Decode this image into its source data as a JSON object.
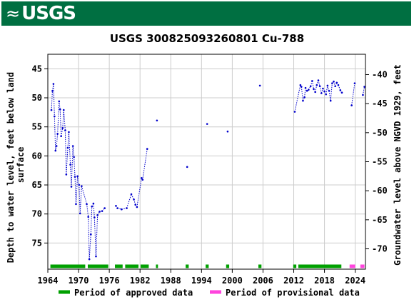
{
  "header": {
    "logo_text": "USGS",
    "logo_icon": "usgs-wave-icon",
    "bg_color": "#006f41"
  },
  "chart_data": {
    "type": "scatter",
    "title": "USGS 300825093260801 Cu-788",
    "ylabel_left": "Depth to water level, feet below land surface",
    "ylabel_right": "Groundwater level above NGVD 1929, feet",
    "xlim": [
      1964,
      2026
    ],
    "ylim_left": [
      79.5,
      42.5
    ],
    "ylim_right": [
      -36.5,
      -73.5
    ],
    "x_ticks": [
      "1964",
      "1970",
      "1976",
      "1982",
      "1988",
      "1994",
      "2000",
      "2006",
      "2012",
      "2018",
      "2024"
    ],
    "y_ticks_left": [
      "45",
      "50",
      "55",
      "60",
      "65",
      "70",
      "75"
    ],
    "y_ticks_right": [
      "-40",
      "-45",
      "-50",
      "-55",
      "-60",
      "-65",
      "-70"
    ],
    "grid": true,
    "series": [
      {
        "name": "Depth to water level",
        "color": "#0000cc",
        "points": [
          [
            1964.7,
            52.1
          ],
          [
            1964.9,
            48.8
          ],
          [
            1965.1,
            47.6
          ],
          [
            1965.3,
            53.2
          ],
          [
            1965.5,
            59.1
          ],
          [
            1965.7,
            58.3
          ],
          [
            1965.9,
            56.2
          ],
          [
            1966.2,
            50.6
          ],
          [
            1966.4,
            52.0
          ],
          [
            1966.6,
            56.6
          ],
          [
            1966.9,
            55.2
          ],
          [
            1967.1,
            52.1
          ],
          [
            1967.4,
            55.6
          ],
          [
            1967.6,
            63.2
          ],
          [
            1967.9,
            58.6
          ],
          [
            1968.1,
            55.9
          ],
          [
            1968.4,
            61.5
          ],
          [
            1968.6,
            65.3
          ],
          [
            1968.9,
            58.3
          ],
          [
            1969.1,
            60.2
          ],
          [
            1969.3,
            63.6
          ],
          [
            1969.5,
            68.3
          ],
          [
            1969.8,
            63.5
          ],
          [
            1970.1,
            65.0
          ],
          [
            1970.3,
            69.9
          ],
          [
            1970.6,
            65.2
          ],
          [
            1971.6,
            68.3
          ],
          [
            1971.9,
            70.5
          ],
          [
            1972.1,
            77.8
          ],
          [
            1972.4,
            73.5
          ],
          [
            1972.6,
            68.7
          ],
          [
            1972.9,
            68.2
          ],
          [
            1973.1,
            70.6
          ],
          [
            1973.4,
            77.3
          ],
          [
            1973.7,
            70.2
          ],
          [
            1974.1,
            69.6
          ],
          [
            1974.6,
            69.5
          ],
          [
            1975.1,
            69.0
          ],
          [
            1977.3,
            68.6
          ],
          [
            1977.6,
            69.0
          ],
          [
            1978.4,
            69.2
          ],
          [
            1979.4,
            69.0
          ],
          [
            1980.3,
            66.6
          ],
          [
            1980.8,
            67.5
          ],
          [
            1981.1,
            68.4
          ],
          [
            1981.4,
            68.8
          ],
          [
            1982.3,
            63.8
          ],
          [
            1982.5,
            64.1
          ],
          [
            1983.4,
            58.8
          ],
          [
            1985.3,
            53.9
          ],
          [
            1991.2,
            61.9
          ],
          [
            1995.1,
            54.5
          ],
          [
            1999.1,
            55.8
          ],
          [
            2005.4,
            47.9
          ],
          [
            2012.2,
            52.4
          ],
          [
            2013.3,
            47.8
          ],
          [
            2013.5,
            48.1
          ],
          [
            2013.8,
            50.5
          ],
          [
            2014.1,
            49.9
          ],
          [
            2014.3,
            48.3
          ],
          [
            2014.6,
            48.8
          ],
          [
            2014.9,
            48.6
          ],
          [
            2015.3,
            48.0
          ],
          [
            2015.6,
            47.1
          ],
          [
            2015.9,
            48.5
          ],
          [
            2016.2,
            49.0
          ],
          [
            2016.5,
            47.8
          ],
          [
            2016.8,
            47.0
          ],
          [
            2017.1,
            48.0
          ],
          [
            2017.4,
            49.2
          ],
          [
            2017.7,
            48.4
          ],
          [
            2018.0,
            48.9
          ],
          [
            2018.3,
            49.4
          ],
          [
            2018.6,
            47.9
          ],
          [
            2018.9,
            48.8
          ],
          [
            2019.2,
            50.5
          ],
          [
            2019.5,
            47.5
          ],
          [
            2019.8,
            47.2
          ],
          [
            2020.1,
            48.0
          ],
          [
            2020.4,
            47.4
          ],
          [
            2020.7,
            47.8
          ],
          [
            2021.1,
            48.7
          ],
          [
            2021.4,
            49.1
          ],
          [
            2023.3,
            51.3
          ],
          [
            2023.9,
            47.5
          ],
          [
            2025.5,
            49.5
          ],
          [
            2025.8,
            48.1
          ]
        ]
      }
    ],
    "approved_periods": [
      [
        1964.5,
        1971.3
      ],
      [
        1971.8,
        1975.8
      ],
      [
        1977.1,
        1978.6
      ],
      [
        1979.1,
        1981.7
      ],
      [
        1982.1,
        1983.7
      ],
      [
        1985.1,
        1985.5
      ],
      [
        1990.9,
        1991.5
      ],
      [
        1994.8,
        1995.4
      ],
      [
        1998.8,
        1999.4
      ],
      [
        2005.1,
        2005.7
      ],
      [
        2011.9,
        2012.5
      ],
      [
        2012.9,
        2021.3
      ]
    ],
    "provisional_periods": [
      [
        2022.9,
        2024.0
      ],
      [
        2025.0,
        2025.8
      ]
    ],
    "approved_color": "#00a000",
    "provisional_color": "#ff44dd",
    "legend": {
      "approved": "Period of approved data",
      "provisional": "Period of provisional data",
      "placement": "bottom"
    }
  }
}
